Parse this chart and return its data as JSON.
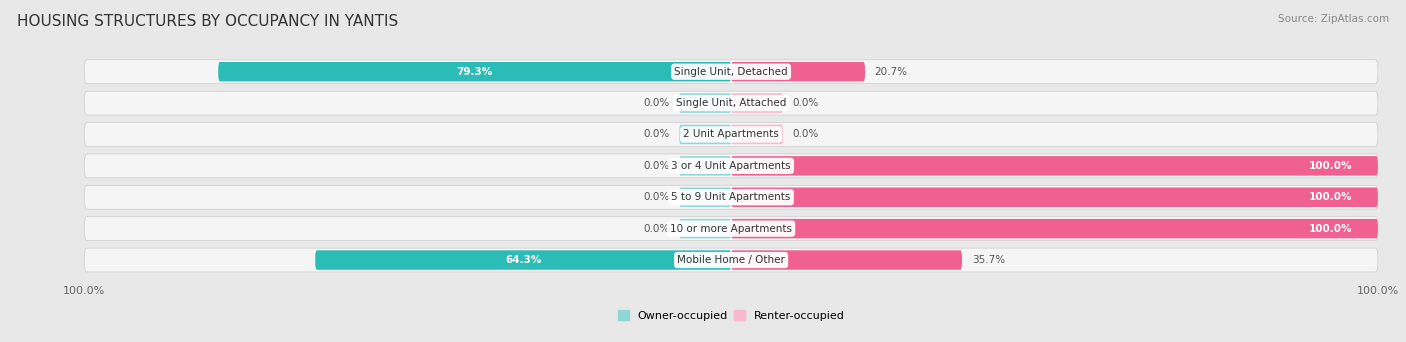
{
  "title": "HOUSING STRUCTURES BY OCCUPANCY IN YANTIS",
  "source": "Source: ZipAtlas.com",
  "categories": [
    "Single Unit, Detached",
    "Single Unit, Attached",
    "2 Unit Apartments",
    "3 or 4 Unit Apartments",
    "5 to 9 Unit Apartments",
    "10 or more Apartments",
    "Mobile Home / Other"
  ],
  "owner_pct": [
    79.3,
    0.0,
    0.0,
    0.0,
    0.0,
    0.0,
    64.3
  ],
  "renter_pct": [
    20.7,
    0.0,
    0.0,
    100.0,
    100.0,
    100.0,
    35.7
  ],
  "owner_color": "#2bbcb8",
  "renter_color": "#f06090",
  "owner_color_stub": "#90d8d8",
  "renter_color_stub": "#f8b8ce",
  "bg_color": "#e8e8e8",
  "row_bg_color": "#f5f5f5",
  "bar_height": 0.62,
  "stub_pct": 8.0,
  "title_fontsize": 11,
  "label_fontsize": 7.5,
  "source_fontsize": 7.5,
  "legend_fontsize": 8,
  "axis_label_fontsize": 8
}
